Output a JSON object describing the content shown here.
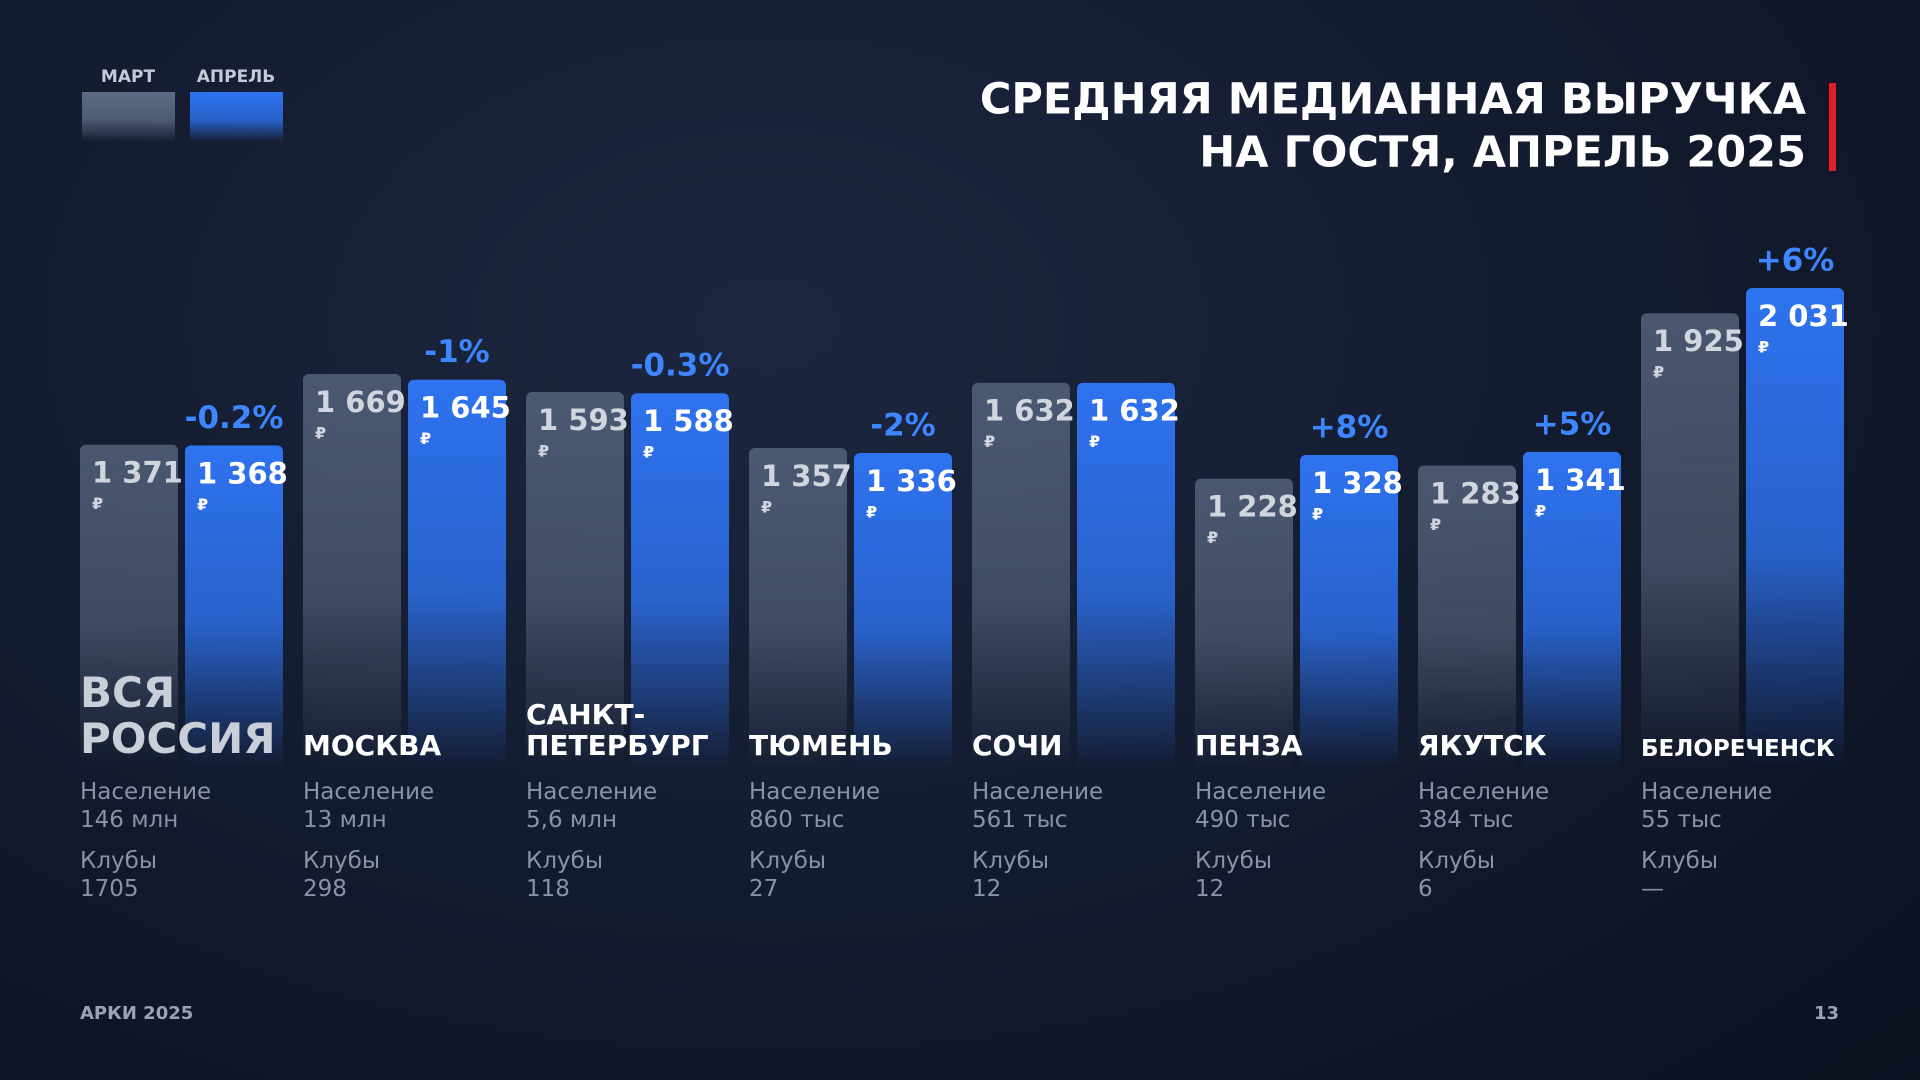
{
  "chart_data": {
    "type": "bar",
    "title_lines": [
      "СРЕДНЯЯ МЕДИАННАЯ ВЫРУЧКА",
      "НА ГОСТЯ, АПРЕЛЬ 2025"
    ],
    "categories": [
      "ВСЯ РОССИЯ",
      "МОСКВА",
      "САНКТ-ПЕТЕРБУРГ",
      "ТЮМЕНЬ",
      "СОЧИ",
      "ПЕНЗА",
      "ЯКУТСК",
      "БЕЛОРЕЧЕНСК"
    ],
    "series": [
      {
        "name": "МАРТ",
        "color": "#5d6b85",
        "values": [
          1371,
          1669,
          1593,
          1357,
          1632,
          1228,
          1283,
          1925
        ],
        "value_labels": [
          "1 371",
          "1 669",
          "1 593",
          "1 357",
          "1 632",
          "1 228",
          "1 283",
          "1 925"
        ]
      },
      {
        "name": "АПРЕЛЬ",
        "color": "#2f73f0",
        "values": [
          1368,
          1645,
          1588,
          1336,
          1632,
          1328,
          1341,
          2031
        ],
        "value_labels": [
          "1 368",
          "1 645",
          "1 588",
          "1 336",
          "1 632",
          "1 328",
          "1 341",
          "2 031"
        ]
      }
    ],
    "currency": "₽",
    "changes": [
      "-0.2%",
      "-1%",
      "-0.3%",
      "-2%",
      null,
      "+8%",
      "+5%",
      "+6%"
    ],
    "population_label": "Население",
    "population": [
      "146 млн",
      "13 млн",
      "5,6 млн",
      "860 тыс",
      "561 тыс",
      "490 тыс",
      "384 тыс",
      "55 тыс"
    ],
    "clubs_label": "Клубы",
    "clubs": [
      "1705",
      "298",
      "118",
      "27",
      "12",
      "12",
      "6",
      "—"
    ],
    "ylim": [
      0,
      2600
    ],
    "footer": "АРКИ 2025",
    "page_number": "13"
  }
}
